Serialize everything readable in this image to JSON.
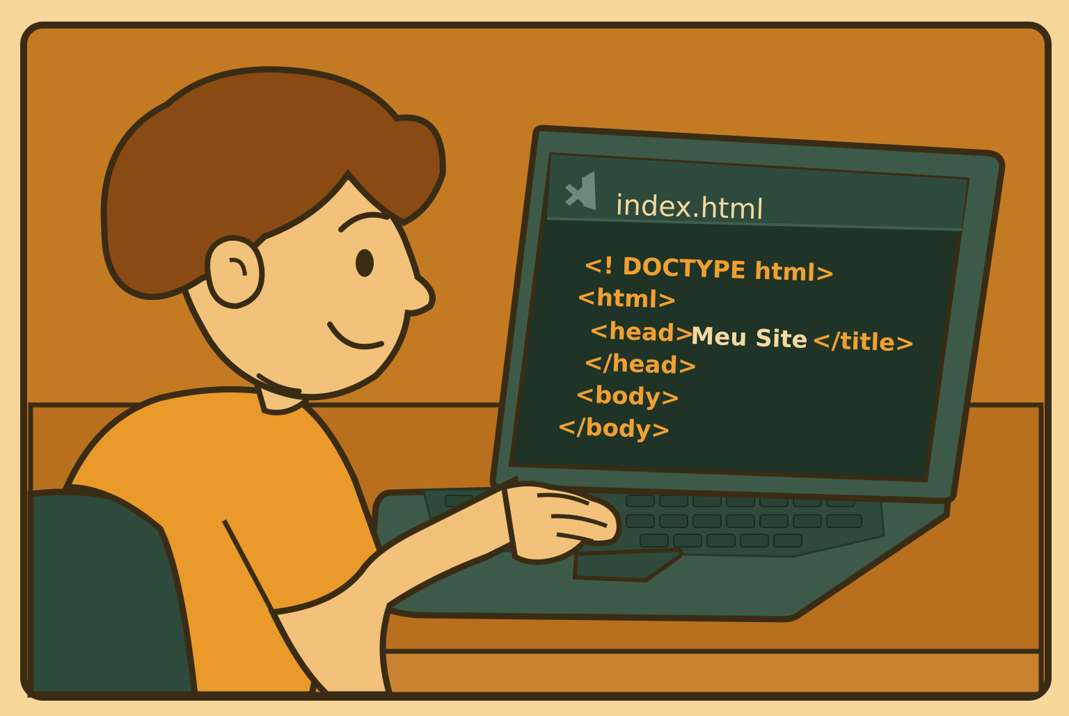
{
  "editor": {
    "tab_title": "index.html",
    "tab_icon": "vscode-logo-icon",
    "code_lines": [
      {
        "tag": "<! DOCTYPE html>",
        "text": "",
        "close": ""
      },
      {
        "tag": "<html>",
        "text": "",
        "close": ""
      },
      {
        "tag": "<head>",
        "text": "Meu Site",
        "close": "</title>"
      },
      {
        "tag": "</head>",
        "text": "",
        "close": ""
      },
      {
        "tag": "<body>",
        "text": "",
        "close": ""
      },
      {
        "tag": "</body>",
        "text": "",
        "close": ""
      }
    ]
  },
  "colors": {
    "background_frame": "#f7d79a",
    "wall": "#c47a22",
    "desk": "#b86f1e",
    "outline": "#3a2c14",
    "hair": "#8a4a14",
    "skin": "#f2c27a",
    "shirt": "#e99a2a",
    "chair": "#2e4a3c",
    "laptop_body": "#3d5a48",
    "screen": "#1f3326",
    "code_tag": "#f0a030",
    "code_text": "#f3d9a0"
  }
}
